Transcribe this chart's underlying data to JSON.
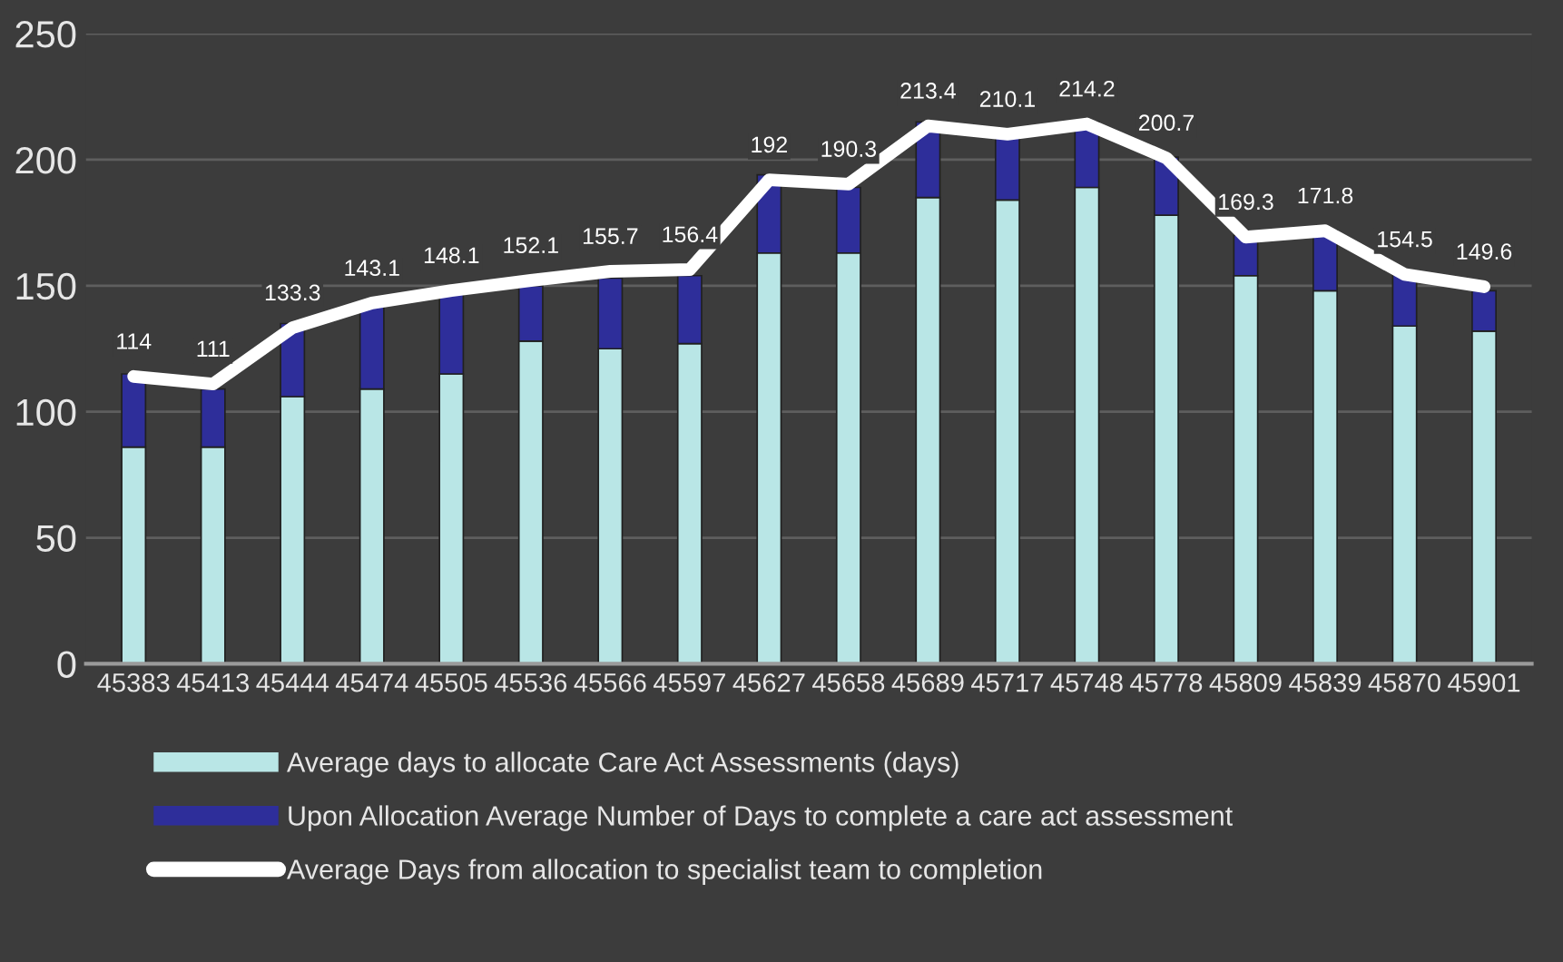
{
  "chart_data": {
    "type": "bar",
    "stacked": true,
    "categories": [
      "45383",
      "45413",
      "45444",
      "45474",
      "45505",
      "45536",
      "45566",
      "45597",
      "45627",
      "45658",
      "45689",
      "45717",
      "45748",
      "45778",
      "45809",
      "45839",
      "45870",
      "45901"
    ],
    "series": [
      {
        "name": "Average days to allocate Care Act Assessments (days)",
        "color": "#b9e6e6",
        "values": [
          86,
          86,
          106,
          109,
          115,
          128,
          125,
          127,
          163,
          163,
          185,
          184,
          189,
          178,
          154,
          148,
          134,
          132
        ]
      },
      {
        "name": "Upon Allocation Average Number of Days to complete a care act assessment",
        "color": "#2e2e9a",
        "values": [
          29,
          23,
          29,
          34,
          32,
          22,
          28,
          27,
          31,
          26,
          30,
          26,
          26,
          23,
          16,
          24,
          21,
          16
        ]
      },
      {
        "name": "Average Days from allocation to specialist team to completion",
        "type": "line",
        "color": "#ffffff",
        "values": [
          114,
          111,
          133.3,
          143.1,
          148.1,
          152.1,
          155.7,
          156.4,
          192,
          190.3,
          213.4,
          210.1,
          214.2,
          200.7,
          169.3,
          171.8,
          154.5,
          149.6
        ],
        "value_labels": [
          "114",
          "111",
          "133.3",
          "143.1",
          "148.1",
          "152.1",
          "155.7",
          "156.4",
          "192",
          "190.3",
          "213.4",
          "210.1",
          "214.2",
          "200.7",
          "169.3",
          "171.8",
          "154.5",
          "149.6"
        ]
      }
    ],
    "ylim": [
      0,
      250
    ],
    "yticks": [
      0,
      50,
      100,
      150,
      200,
      250
    ],
    "grid": "y",
    "legend": "bottom",
    "marker": "none",
    "line_style": "solid"
  }
}
